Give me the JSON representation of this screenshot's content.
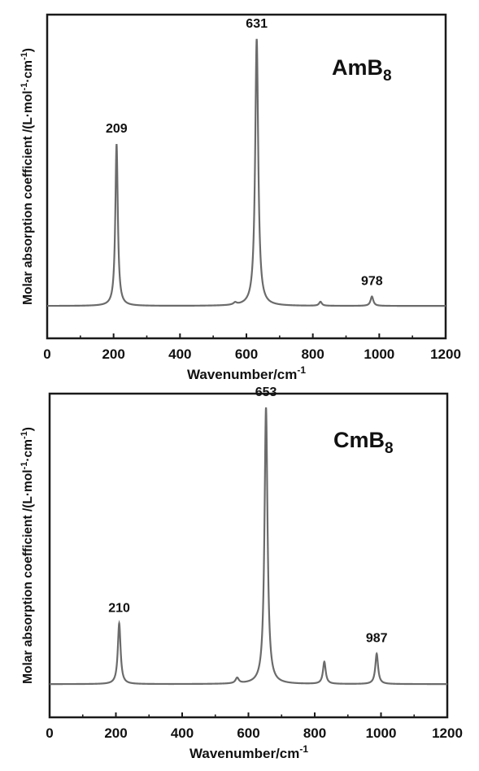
{
  "chart_data": [
    {
      "type": "line",
      "title": "AmB",
      "title_subscript": "8",
      "xlabel": "Wavenumber/cm",
      "xlabel_sup": "-1",
      "ylabel": "Molar absorption coefficient /(L·mol",
      "ylabel_sup1": "-1",
      "ylabel_mid": "·cm",
      "ylabel_sup2": "-1",
      "ylabel_end": ")",
      "xlim": [
        0,
        1200
      ],
      "ylim": [
        -0.12,
        1.08
      ],
      "xticks": [
        0,
        200,
        400,
        600,
        800,
        1000,
        1200
      ],
      "grid": false,
      "line_color": "#6b6b6b",
      "baseline": 0.0,
      "peaks": [
        {
          "x": 209,
          "height": 0.6,
          "width": 4.5
        },
        {
          "x": 566,
          "height": 0.008,
          "width": 6
        },
        {
          "x": 631,
          "height": 0.99,
          "width": 5.5
        },
        {
          "x": 823,
          "height": 0.015,
          "width": 5
        },
        {
          "x": 978,
          "height": 0.035,
          "width": 5
        }
      ],
      "annotations": [
        {
          "x": 209,
          "label": "209"
        },
        {
          "x": 631,
          "label": "631"
        },
        {
          "x": 978,
          "label": "978"
        }
      ]
    },
    {
      "type": "line",
      "title": "CmB",
      "title_subscript": "8",
      "xlabel": "Wavenumber/cm",
      "xlabel_sup": "-1",
      "ylabel": "Molar absorption coefficient /(L·mol",
      "ylabel_sup1": "-1",
      "ylabel_mid": "·cm",
      "ylabel_sup2": "-1",
      "ylabel_end": ")",
      "xlim": [
        0,
        1200
      ],
      "ylim": [
        -0.12,
        1.05
      ],
      "xticks": [
        0,
        200,
        400,
        600,
        800,
        1000,
        1200
      ],
      "grid": false,
      "line_color": "#6b6b6b",
      "baseline": 0.0,
      "peaks": [
        {
          "x": 210,
          "height": 0.22,
          "width": 5
        },
        {
          "x": 566,
          "height": 0.02,
          "width": 6
        },
        {
          "x": 653,
          "height": 1.0,
          "width": 5.5
        },
        {
          "x": 829,
          "height": 0.08,
          "width": 5
        },
        {
          "x": 987,
          "height": 0.11,
          "width": 5
        }
      ],
      "annotations": [
        {
          "x": 210,
          "label": "210"
        },
        {
          "x": 653,
          "label": "653"
        },
        {
          "x": 987,
          "label": "987"
        }
      ]
    }
  ]
}
